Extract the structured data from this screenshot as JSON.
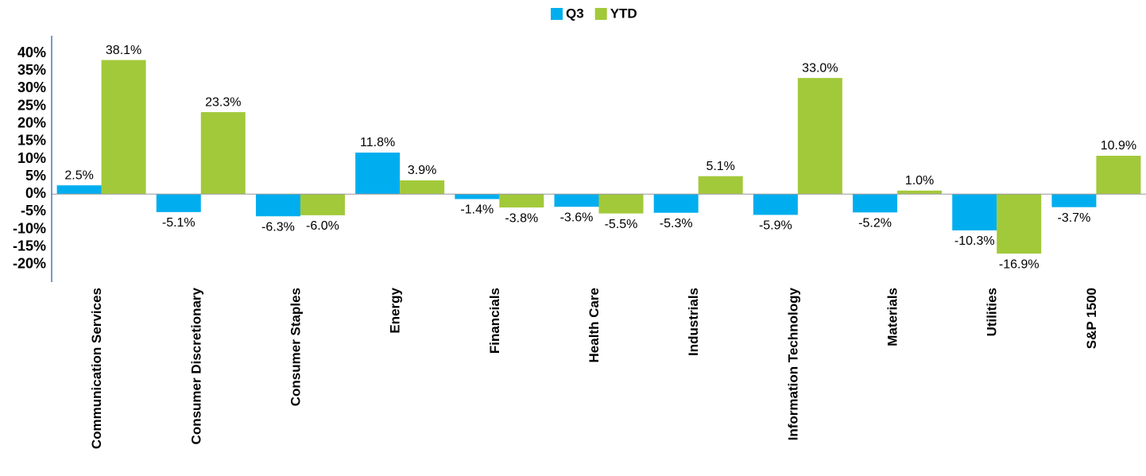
{
  "chart_data": {
    "type": "bar",
    "categories": [
      "Communication Services",
      "Consumer Discretionary",
      "Consumer Staples",
      "Energy",
      "Financials",
      "Health Care",
      "Industrials",
      "Information Technology",
      "Materials",
      "Utilities",
      "S&P 1500"
    ],
    "series": [
      {
        "name": "Q3",
        "color": "#00aeef",
        "values": [
          2.5,
          -5.1,
          -6.3,
          11.8,
          -1.4,
          -3.6,
          -5.3,
          -5.9,
          -5.2,
          -10.3,
          -3.7
        ],
        "value_labels": [
          "2.5%",
          "-5.1%",
          "-6.3%",
          "11.8%",
          "-1.4%",
          "-3.6%",
          "-5.3%",
          "-5.9%",
          "-5.2%",
          "-10.3%",
          "-3.7%"
        ]
      },
      {
        "name": "YTD",
        "color": "#a2c93a",
        "values": [
          38.1,
          23.3,
          -6.0,
          3.9,
          -3.8,
          -5.5,
          5.1,
          33.0,
          1.0,
          -16.9,
          10.9
        ],
        "value_labels": [
          "38.1%",
          "23.3%",
          "-6.0%",
          "3.9%",
          "-3.8%",
          "-5.5%",
          "5.1%",
          "33.0%",
          "1.0%",
          "-16.9%",
          "10.9%"
        ]
      }
    ],
    "ylim": [
      -25,
      45
    ],
    "yticks": [
      {
        "value": -20,
        "label": "-20%"
      },
      {
        "value": -15,
        "label": "-15%"
      },
      {
        "value": -10,
        "label": "-10%"
      },
      {
        "value": -5,
        "label": "-5%"
      },
      {
        "value": 0,
        "label": "0%"
      },
      {
        "value": 5,
        "label": "5%"
      },
      {
        "value": 10,
        "label": "10%"
      },
      {
        "value": 15,
        "label": "15%"
      },
      {
        "value": 20,
        "label": "20%"
      },
      {
        "value": 25,
        "label": "25%"
      },
      {
        "value": 30,
        "label": "30%"
      },
      {
        "value": 35,
        "label": "35%"
      },
      {
        "value": 40,
        "label": "40%"
      }
    ],
    "legend": "top"
  }
}
